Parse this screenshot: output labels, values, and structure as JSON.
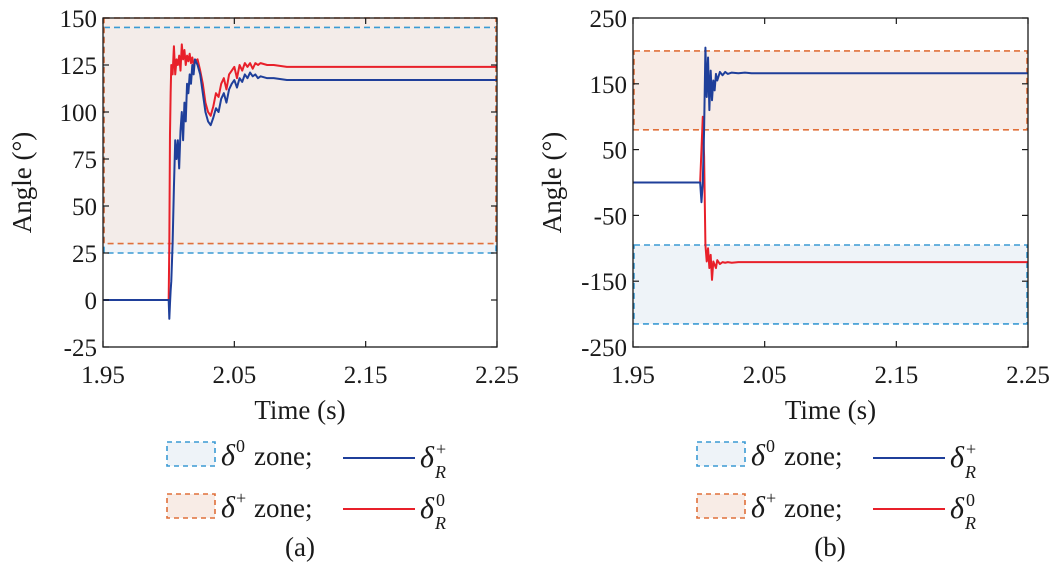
{
  "colors": {
    "delta_plus_line": "#1f3f9a",
    "delta_zero_line": "#e8202a",
    "delta_zero_zone_border": "#3a9ad4",
    "delta_zero_zone_fill": "#eef3f8",
    "delta_plus_zone_border": "#e0703a",
    "delta_plus_zone_fill": "#f8ece6",
    "overlap_fill": "#f3ece9"
  },
  "chart_data": [
    {
      "type": "line",
      "panel_label": "(a)",
      "xlabel": "Time (s)",
      "ylabel": "Angle (°)",
      "xlim": [
        1.95,
        2.25
      ],
      "ylim": [
        -25,
        150
      ],
      "xticks": [
        "1.95",
        "2.05",
        "2.15",
        "2.25"
      ],
      "xtick_values": [
        1.95,
        2.05,
        2.15,
        2.25
      ],
      "yticks": [
        "-25",
        "0",
        "25",
        "50",
        "75",
        "100",
        "125",
        "150"
      ],
      "ytick_values": [
        -25,
        0,
        25,
        50,
        75,
        100,
        125,
        150
      ],
      "zones": [
        {
          "name": "delta0 zone",
          "ymin": 25,
          "ymax": 145,
          "border_color": "#3a9ad4"
        },
        {
          "name": "delta+ zone",
          "ymin": 30,
          "ymax": 150,
          "border_color": "#e0703a"
        }
      ],
      "series": [
        {
          "name": "δR+",
          "color": "#1f3f9a",
          "x": [
            1.95,
            2.0,
            2.0005,
            2.001,
            2.0015,
            2.002,
            2.003,
            2.004,
            2.005,
            2.006,
            2.007,
            2.008,
            2.009,
            2.01,
            2.011,
            2.012,
            2.013,
            2.014,
            2.015,
            2.016,
            2.017,
            2.018,
            2.019,
            2.02,
            2.022,
            2.024,
            2.026,
            2.028,
            2.03,
            2.032,
            2.034,
            2.036,
            2.038,
            2.04,
            2.042,
            2.044,
            2.046,
            2.048,
            2.05,
            2.052,
            2.054,
            2.056,
            2.058,
            2.06,
            2.062,
            2.064,
            2.066,
            2.068,
            2.07,
            2.075,
            2.08,
            2.09,
            2.1,
            2.12,
            2.15,
            2.2,
            2.25
          ],
          "y": [
            0,
            0,
            -10,
            -2,
            5,
            10,
            30,
            60,
            85,
            75,
            85,
            70,
            90,
            100,
            85,
            105,
            95,
            115,
            110,
            120,
            115,
            125,
            120,
            128,
            125,
            120,
            110,
            100,
            95,
            93,
            97,
            102,
            100,
            107,
            110,
            105,
            112,
            115,
            117,
            113,
            118,
            116,
            120,
            118,
            121,
            119,
            120,
            118,
            119,
            118,
            118,
            117,
            117,
            117,
            117,
            117,
            117
          ]
        },
        {
          "name": "δR0",
          "color": "#e8202a",
          "x": [
            1.95,
            2.0,
            2.0005,
            2.001,
            2.0015,
            2.002,
            2.003,
            2.004,
            2.005,
            2.006,
            2.007,
            2.008,
            2.009,
            2.01,
            2.011,
            2.012,
            2.013,
            2.014,
            2.015,
            2.016,
            2.017,
            2.018,
            2.019,
            2.02,
            2.022,
            2.024,
            2.026,
            2.028,
            2.03,
            2.032,
            2.034,
            2.036,
            2.038,
            2.04,
            2.042,
            2.044,
            2.046,
            2.048,
            2.05,
            2.052,
            2.054,
            2.056,
            2.058,
            2.06,
            2.062,
            2.064,
            2.066,
            2.068,
            2.07,
            2.075,
            2.08,
            2.09,
            2.1,
            2.12,
            2.15,
            2.2,
            2.25
          ],
          "y": [
            0,
            0,
            30,
            88,
            110,
            125,
            120,
            135,
            120,
            128,
            125,
            130,
            122,
            136,
            128,
            133,
            125,
            130,
            127,
            131,
            126,
            129,
            125,
            127,
            128,
            122,
            115,
            105,
            100,
            98,
            103,
            110,
            108,
            115,
            118,
            112,
            120,
            122,
            124,
            118,
            125,
            122,
            126,
            124,
            126,
            123,
            126,
            125,
            126,
            125,
            125,
            124,
            124,
            124,
            124,
            124,
            124
          ]
        }
      ]
    },
    {
      "type": "line",
      "panel_label": "(b)",
      "xlabel": "Time (s)",
      "ylabel": "Angle (°)",
      "xlim": [
        1.95,
        2.25
      ],
      "ylim": [
        -250,
        250
      ],
      "xticks": [
        "1.95",
        "2.05",
        "2.15",
        "2.25"
      ],
      "xtick_values": [
        1.95,
        2.05,
        2.15,
        2.25
      ],
      "yticks": [
        "-250",
        "-150",
        "-50",
        "50",
        "150",
        "250"
      ],
      "ytick_values": [
        -250,
        -150,
        -50,
        50,
        150,
        250
      ],
      "zones": [
        {
          "name": "delta0 zone",
          "ymin": -215,
          "ymax": -95,
          "border_color": "#3a9ad4"
        },
        {
          "name": "delta+ zone",
          "ymin": 80,
          "ymax": 200,
          "border_color": "#e0703a"
        }
      ],
      "series": [
        {
          "name": "δR+",
          "color": "#1f3f9a",
          "x": [
            1.95,
            2.0,
            2.001,
            2.002,
            2.003,
            2.004,
            2.005,
            2.006,
            2.007,
            2.008,
            2.009,
            2.01,
            2.011,
            2.012,
            2.013,
            2.014,
            2.016,
            2.018,
            2.02,
            2.022,
            2.025,
            2.03,
            2.035,
            2.04,
            2.05,
            2.1,
            2.15,
            2.2,
            2.25
          ],
          "y": [
            0,
            0,
            0,
            -30,
            0,
            80,
            205,
            130,
            190,
            110,
            170,
            125,
            155,
            140,
            165,
            155,
            168,
            163,
            168,
            165,
            167,
            166,
            167,
            166,
            166,
            166,
            166,
            166,
            166
          ]
        },
        {
          "name": "δR0",
          "color": "#e8202a",
          "x": [
            1.95,
            2.0,
            2.001,
            2.002,
            2.003,
            2.004,
            2.005,
            2.006,
            2.007,
            2.008,
            2.009,
            2.01,
            2.011,
            2.012,
            2.013,
            2.014,
            2.016,
            2.018,
            2.02,
            2.022,
            2.025,
            2.03,
            2.035,
            2.04,
            2.05,
            2.1,
            2.15,
            2.2,
            2.25
          ],
          "y": [
            0,
            0,
            0,
            50,
            100,
            40,
            -95,
            -120,
            -100,
            -130,
            -110,
            -148,
            -120,
            -125,
            -130,
            -118,
            -124,
            -121,
            -122,
            -121,
            -122,
            -121,
            -121,
            -121,
            -121,
            -121,
            -121,
            -121,
            -121
          ]
        }
      ]
    }
  ],
  "legend": {
    "zone_zero_text": "zone;",
    "zone_plus_text": "zone;",
    "delta": "δ",
    "sup_zero": "0",
    "sup_plus": "+",
    "sub_r": "R"
  }
}
